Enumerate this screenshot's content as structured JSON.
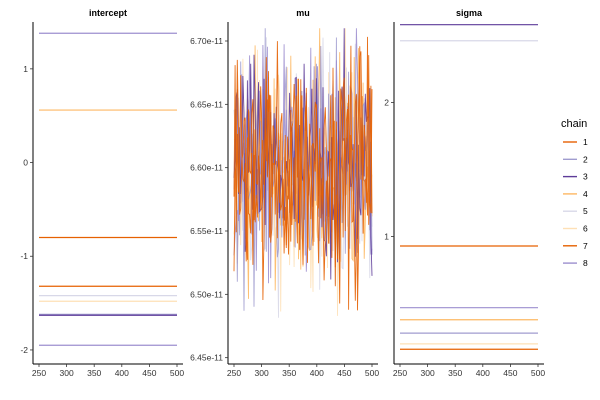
{
  "chart_data": {
    "type": "line",
    "description_kind": "MCMC trace plots, faceted by parameter",
    "x_ticks": [
      250,
      300,
      350,
      400,
      450,
      500
    ],
    "xlim": [
      250,
      500
    ],
    "legend": {
      "title": "chain",
      "placement": "right",
      "entries": [
        "1",
        "2",
        "3",
        "4",
        "5",
        "6",
        "7",
        "8"
      ],
      "colors": [
        "#e66101",
        "#a09ccf",
        "#5e3c99",
        "#fdb863",
        "#d8d8e8",
        "#fee0b6",
        "#e66101",
        "#9d8fcf"
      ]
    },
    "panels": [
      {
        "title": "intercept",
        "ylim": [
          -2.15,
          1.5
        ],
        "y_ticks": [
          1,
          0,
          -1,
          -2
        ],
        "y_tick_labels": [
          "1",
          "0",
          "-1",
          "-2"
        ],
        "series": [
          {
            "chain": "1",
            "value": -1.32
          },
          {
            "chain": "2",
            "value": -1.62
          },
          {
            "chain": "3",
            "value": -1.63
          },
          {
            "chain": "4",
            "value": 0.56
          },
          {
            "chain": "5",
            "value": -1.42
          },
          {
            "chain": "6",
            "value": -1.48
          },
          {
            "chain": "7",
            "value": -0.8
          },
          {
            "chain": "8",
            "value": -1.95
          },
          {
            "chain": "8",
            "value": 1.38
          }
        ]
      },
      {
        "title": "mu",
        "ylim": [
          6.445e-11,
          6.715e-11
        ],
        "y_ticks": [
          6.7e-11,
          6.65e-11,
          6.6e-11,
          6.55e-11,
          6.5e-11,
          6.45e-11
        ],
        "y_tick_labels": [
          "6.70e-11",
          "6.65e-11",
          "6.60e-11",
          "6.55e-11",
          "6.50e-11",
          "6.45e-11"
        ],
        "trace": {
          "center": 6.6e-11,
          "spread": 4.5e-13,
          "min": 6.455e-11,
          "max": 6.71e-11
        }
      },
      {
        "title": "sigma",
        "ylim": [
          0.05,
          2.6
        ],
        "y_ticks": [
          2,
          1
        ],
        "y_tick_labels": [
          "2",
          "1"
        ],
        "series": [
          {
            "chain": "1",
            "value": 0.16
          },
          {
            "chain": "2",
            "value": 0.28
          },
          {
            "chain": "3",
            "value": 2.58
          },
          {
            "chain": "4",
            "value": 0.38
          },
          {
            "chain": "5",
            "value": 2.46
          },
          {
            "chain": "6",
            "value": 0.2
          },
          {
            "chain": "7",
            "value": 0.93
          },
          {
            "chain": "8",
            "value": 0.47
          }
        ]
      }
    ]
  }
}
